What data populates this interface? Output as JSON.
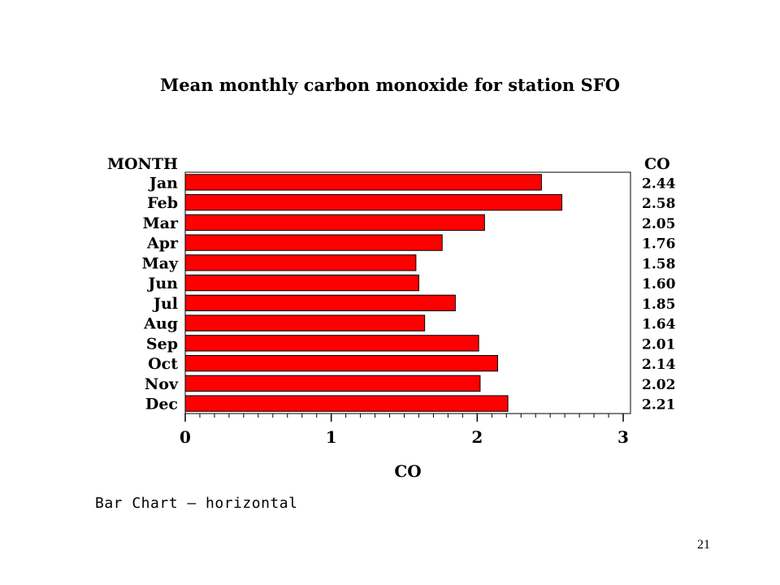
{
  "slide": {
    "caption": "Bar Chart — horizontal",
    "page_number": "21"
  },
  "chart_data": {
    "type": "bar",
    "orientation": "horizontal",
    "title": "Mean monthly carbon monoxide for station SFO",
    "category_header": "MONTH",
    "value_header": "CO",
    "xlabel": "CO",
    "ylabel": "",
    "categories": [
      "Jan",
      "Feb",
      "Mar",
      "Apr",
      "May",
      "Jun",
      "Jul",
      "Aug",
      "Sep",
      "Oct",
      "Nov",
      "Dec"
    ],
    "values": [
      2.44,
      2.58,
      2.05,
      1.76,
      1.58,
      1.6,
      1.85,
      1.64,
      2.01,
      2.14,
      2.02,
      2.21
    ],
    "value_labels": [
      "2.44",
      "2.58",
      "2.05",
      "1.76",
      "1.58",
      "1.60",
      "1.85",
      "1.64",
      "2.01",
      "2.14",
      "2.02",
      "2.21"
    ],
    "xlim": [
      0,
      3.05
    ],
    "xticks": [
      0,
      1,
      2,
      3
    ],
    "xtick_labels": [
      "0",
      "1",
      "2",
      "3"
    ],
    "minor_ticks_per_major": 10,
    "bar_color": "#ff0000",
    "bar_edge_color": "#000000",
    "grid": false,
    "legend": "none"
  }
}
